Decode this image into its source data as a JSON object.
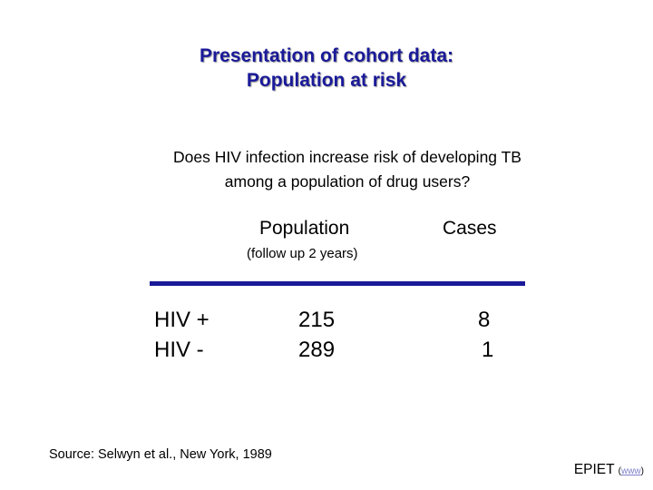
{
  "slide": {
    "title_lines": [
      "Presentation of cohort data:",
      "Population at risk"
    ],
    "question_lines": [
      "Does HIV infection increase risk of developing TB",
      "among a population of drug users?"
    ],
    "table": {
      "headers": {
        "population": "Population",
        "cases": "Cases"
      },
      "population_note": "(follow up 2 years)",
      "rows": [
        {
          "group": "HIV +",
          "population": "215",
          "cases": "8"
        },
        {
          "group": "HIV -",
          "population": "289",
          "cases": "1"
        }
      ]
    },
    "source": "Source: Selwyn et al., New York, 1989",
    "footer": {
      "label": "EPIET",
      "open_paren": "(",
      "link_text": "www",
      "close_paren": ")"
    }
  },
  "colors": {
    "title": "#1a1a99",
    "rule": "#1a1a99",
    "link": "#7f7fc8"
  }
}
